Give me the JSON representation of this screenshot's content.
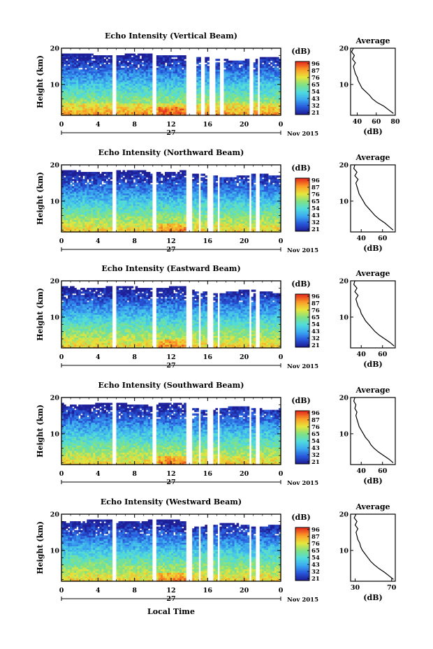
{
  "xlabel_bottom": "Local Time",
  "chart_data": [
    {
      "type": "heatmap",
      "title": "Echo Intensity (Vertical Beam)",
      "ylabel": "Height (km)",
      "x_ticks": [
        "0",
        "4",
        "8",
        "12",
        "16",
        "20",
        "0"
      ],
      "x_range": [
        0,
        24
      ],
      "y_ticks": [
        "10",
        "20"
      ],
      "y_range": [
        1.5,
        20
      ],
      "day_label": "27",
      "month_label": "Nov 2015",
      "colorbar": {
        "unit": "(dB)",
        "ticks": [
          "96",
          "87",
          "76",
          "65",
          "54",
          "43",
          "32",
          "21"
        ]
      },
      "gaps": [
        [
          5.6,
          6.1
        ],
        [
          9.9,
          10.3
        ],
        [
          13.7,
          14.8
        ],
        [
          15.2,
          15.6
        ],
        [
          16.1,
          16.8
        ],
        [
          17.3,
          17.7
        ],
        [
          20.6,
          20.9
        ],
        [
          21.4,
          21.7
        ]
      ],
      "profile": {
        "title": "Average",
        "xlabel": "(dB)",
        "x_ticks": [
          "40",
          "60",
          "80"
        ],
        "x_range": [
          33,
          80
        ],
        "y_range": [
          1.5,
          20
        ],
        "y_ticks": [
          "10",
          "20"
        ],
        "height": [
          2,
          3,
          4,
          5,
          6,
          7,
          8,
          9,
          10,
          11,
          12,
          13,
          14,
          15,
          16,
          17,
          18,
          19,
          20
        ],
        "value": [
          78,
          73,
          68,
          61,
          56,
          53,
          49,
          45,
          43,
          41,
          40,
          38,
          37,
          36,
          38,
          35,
          37,
          34,
          36
        ]
      }
    },
    {
      "type": "heatmap",
      "title": "Echo Intensity (Northward Beam)",
      "ylabel": "Height (km)",
      "x_ticks": [
        "0",
        "4",
        "8",
        "12",
        "16",
        "20",
        "0"
      ],
      "x_range": [
        0,
        24
      ],
      "y_ticks": [
        "10",
        "20"
      ],
      "y_range": [
        1.5,
        20
      ],
      "day_label": "27",
      "month_label": "Nov 2015",
      "colorbar": {
        "unit": "(dB)",
        "ticks": [
          "96",
          "87",
          "76",
          "65",
          "54",
          "43",
          "32",
          "21"
        ]
      },
      "gaps": [
        [
          5.6,
          6.1
        ],
        [
          9.9,
          10.3
        ],
        [
          13.7,
          14.4
        ],
        [
          14.9,
          15.2
        ],
        [
          16.0,
          16.6
        ],
        [
          17.1,
          17.4
        ],
        [
          20.5,
          20.8
        ],
        [
          21.3,
          21.6
        ]
      ],
      "profile": {
        "title": "Average",
        "xlabel": "(dB)",
        "x_ticks": [
          "40",
          "60"
        ],
        "x_range": [
          30,
          72
        ],
        "y_range": [
          1.5,
          20
        ],
        "y_ticks": [
          "10",
          "20"
        ],
        "height": [
          2,
          3,
          4,
          5,
          6,
          7,
          8,
          9,
          10,
          11,
          12,
          13,
          14,
          15,
          16,
          17,
          18,
          19,
          20
        ],
        "value": [
          70,
          66,
          62,
          57,
          53,
          50,
          47,
          44,
          42,
          40,
          38,
          37,
          36,
          35,
          37,
          34,
          36,
          33,
          34
        ]
      }
    },
    {
      "type": "heatmap",
      "title": "Echo Intensity (Eastward Beam)",
      "ylabel": "Height (km)",
      "x_ticks": [
        "0",
        "4",
        "8",
        "12",
        "16",
        "20",
        "0"
      ],
      "x_range": [
        0,
        24
      ],
      "y_ticks": [
        "10",
        "20"
      ],
      "y_range": [
        1.5,
        20
      ],
      "day_label": "27",
      "month_label": "Nov 2015",
      "colorbar": {
        "unit": "(dB)",
        "ticks": [
          "96",
          "87",
          "76",
          "65",
          "54",
          "43",
          "32",
          "21"
        ]
      },
      "gaps": [
        [
          5.6,
          6.1
        ],
        [
          9.9,
          10.3
        ],
        [
          13.7,
          14.4
        ],
        [
          14.9,
          15.2
        ],
        [
          16.0,
          16.6
        ],
        [
          17.1,
          17.4
        ],
        [
          20.5,
          20.8
        ],
        [
          21.3,
          21.6
        ]
      ],
      "profile": {
        "title": "Average",
        "xlabel": "(dB)",
        "x_ticks": [
          "40",
          "60"
        ],
        "x_range": [
          30,
          72
        ],
        "y_range": [
          1.5,
          20
        ],
        "y_ticks": [
          "10",
          "20"
        ],
        "height": [
          2,
          3,
          4,
          5,
          6,
          7,
          8,
          9,
          10,
          11,
          12,
          13,
          14,
          15,
          16,
          17,
          18,
          19,
          20
        ],
        "value": [
          71,
          67,
          62,
          57,
          53,
          50,
          47,
          44,
          42,
          40,
          39,
          37,
          36,
          35,
          37,
          34,
          36,
          33,
          34
        ]
      }
    },
    {
      "type": "heatmap",
      "title": "Echo Intensity (Southward Beam)",
      "ylabel": "Height (km)",
      "x_ticks": [
        "0",
        "4",
        "8",
        "12",
        "16",
        "20",
        "0"
      ],
      "x_range": [
        0,
        24
      ],
      "y_ticks": [
        "10",
        "20"
      ],
      "y_range": [
        1.5,
        20
      ],
      "day_label": "27",
      "month_label": "Nov 2015",
      "colorbar": {
        "unit": "(dB)",
        "ticks": [
          "96",
          "87",
          "76",
          "65",
          "54",
          "43",
          "32",
          "21"
        ]
      },
      "gaps": [
        [
          5.6,
          6.1
        ],
        [
          9.9,
          10.3
        ],
        [
          13.7,
          14.4
        ],
        [
          14.9,
          15.2
        ],
        [
          16.0,
          16.6
        ],
        [
          17.1,
          17.4
        ],
        [
          20.5,
          20.8
        ],
        [
          21.3,
          21.6
        ]
      ],
      "profile": {
        "title": "Average",
        "xlabel": "(dB)",
        "x_ticks": [
          "40",
          "60"
        ],
        "x_range": [
          30,
          72
        ],
        "y_range": [
          1.5,
          20
        ],
        "y_ticks": [
          "10",
          "20"
        ],
        "height": [
          2,
          3,
          4,
          5,
          6,
          7,
          8,
          9,
          10,
          11,
          12,
          13,
          14,
          15,
          16,
          17,
          18,
          19,
          20
        ],
        "value": [
          70,
          66,
          61,
          56,
          52,
          49,
          47,
          44,
          42,
          40,
          38,
          37,
          36,
          35,
          36,
          34,
          35,
          33,
          34
        ]
      }
    },
    {
      "type": "heatmap",
      "title": "Echo Intensity (Westward Beam)",
      "ylabel": "Height (km)",
      "x_ticks": [
        "0",
        "4",
        "8",
        "12",
        "16",
        "20",
        "0"
      ],
      "x_range": [
        0,
        24
      ],
      "y_ticks": [
        "10",
        "20"
      ],
      "y_range": [
        1.5,
        20
      ],
      "day_label": "27",
      "month_label": "Nov 2015",
      "colorbar": {
        "unit": "(dB)",
        "ticks": [
          "96",
          "87",
          "76",
          "65",
          "54",
          "43",
          "32",
          "21"
        ]
      },
      "gaps": [
        [
          5.6,
          6.1
        ],
        [
          9.9,
          10.3
        ],
        [
          13.7,
          14.4
        ],
        [
          14.9,
          15.2
        ],
        [
          16.0,
          16.6
        ],
        [
          17.1,
          17.4
        ],
        [
          20.5,
          20.8
        ],
        [
          21.3,
          21.6
        ]
      ],
      "profile": {
        "title": "Average",
        "xlabel": "(dB)",
        "x_ticks": [
          "30",
          "70"
        ],
        "x_range": [
          25,
          74
        ],
        "y_range": [
          1.5,
          20
        ],
        "y_ticks": [
          "10",
          "20"
        ],
        "height": [
          2,
          3,
          4,
          5,
          6,
          7,
          8,
          9,
          10,
          11,
          12,
          13,
          14,
          15,
          16,
          17,
          18,
          19,
          20
        ],
        "value": [
          72,
          67,
          62,
          56,
          51,
          47,
          44,
          41,
          38,
          36,
          35,
          33,
          32,
          31,
          33,
          30,
          32,
          29,
          31
        ]
      }
    }
  ]
}
